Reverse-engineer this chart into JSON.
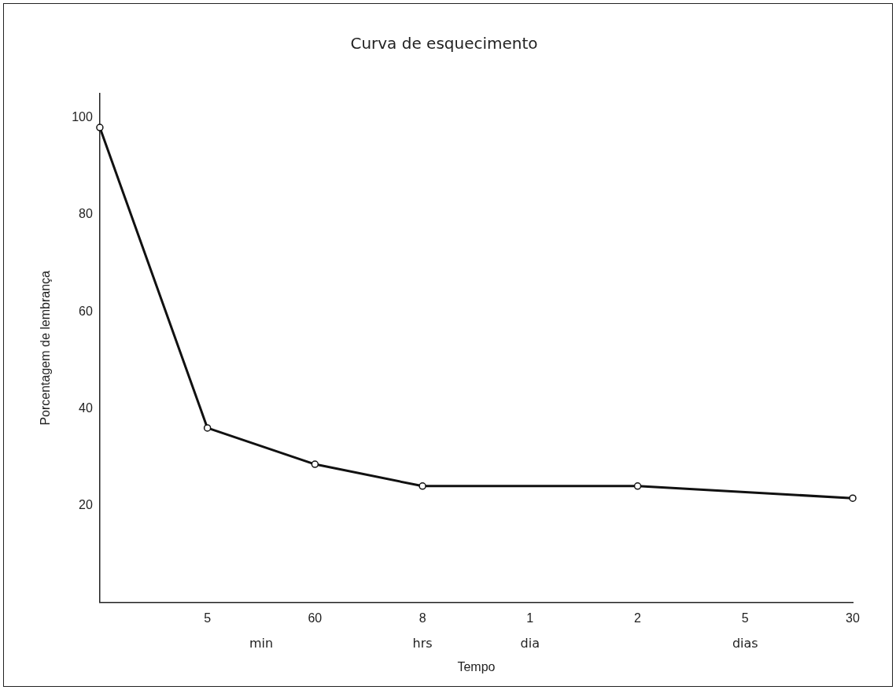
{
  "chart_data": {
    "type": "line",
    "title": "Curva de esquecimento",
    "xlabel": "Tempo",
    "ylabel": "Porcentagem de lembrança",
    "categories": [
      null,
      "5",
      "60",
      "8",
      "1",
      "2",
      "5",
      "30"
    ],
    "series": [
      {
        "color": "#111111",
        "values": [
          98,
          36,
          28.5,
          24,
          null,
          24,
          null,
          21.5
        ]
      }
    ],
    "ylim": [
      0,
      105
    ],
    "yticks": [
      20,
      40,
      60,
      80,
      100
    ],
    "grid": false,
    "legend": false,
    "marker": "circle",
    "line_style": "solid",
    "annotations": [
      "min",
      "hrs",
      "dia",
      "dias"
    ]
  }
}
